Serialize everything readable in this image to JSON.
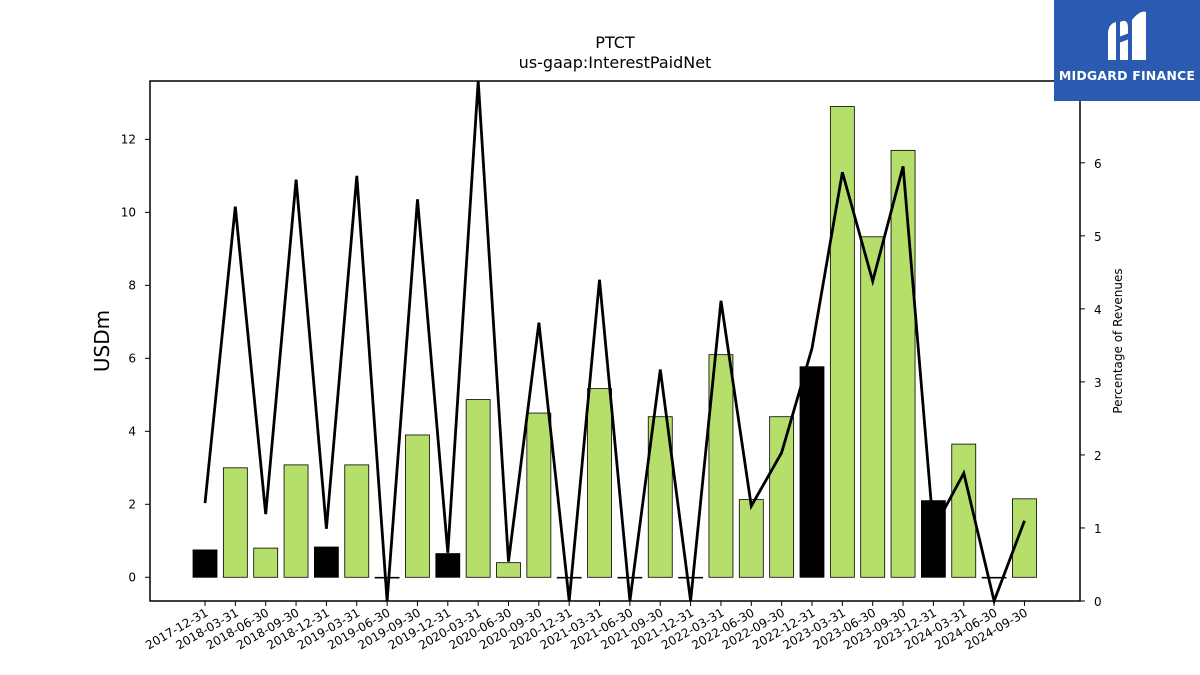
{
  "logo": {
    "text": "MIDGARD FINANCE",
    "color": "#2b5bb0"
  },
  "chart_data": {
    "type": "bar",
    "title": "PTCT",
    "subtitle": "us-gaap:InterestPaidNet",
    "ylabel": "USDm",
    "y2label": "Percentage of Revenues",
    "ylim": [
      -0.65,
      13.6
    ],
    "y2lim": [
      0,
      7.12
    ],
    "yticks": [
      0,
      2,
      4,
      6,
      8,
      10,
      12
    ],
    "y2ticks": [
      0,
      1,
      2,
      3,
      4,
      5,
      6
    ],
    "colors": {
      "annual": "#000000",
      "quarter": "#b5de6b",
      "line": "#000000"
    },
    "categories": [
      "2017-12-31",
      "2018-03-31",
      "2018-06-30",
      "2018-09-30",
      "2018-12-31",
      "2019-03-31",
      "2019-06-30",
      "2019-09-30",
      "2019-12-31",
      "2020-03-31",
      "2020-06-30",
      "2020-09-30",
      "2020-12-31",
      "2021-03-31",
      "2021-06-30",
      "2021-09-30",
      "2021-12-31",
      "2022-03-31",
      "2022-06-30",
      "2022-09-30",
      "2022-12-31",
      "2023-03-31",
      "2023-06-30",
      "2023-09-30",
      "2023-12-31",
      "2024-03-31",
      "2024-06-30",
      "2024-09-30"
    ],
    "series": [
      {
        "type": "bar",
        "values": [
          0.75,
          3.0,
          0.8,
          3.08,
          0.83,
          3.08,
          0.0,
          3.9,
          0.65,
          4.87,
          0.4,
          4.5,
          0.0,
          5.17,
          0.0,
          4.4,
          0.0,
          6.1,
          2.13,
          4.4,
          5.77,
          12.9,
          9.33,
          11.7,
          2.1,
          3.65,
          0.0,
          2.15
        ],
        "kind": [
          "annual",
          "quarter",
          "quarter",
          "quarter",
          "annual",
          "quarter",
          "quarter",
          "quarter",
          "annual",
          "quarter",
          "quarter",
          "quarter",
          "annual",
          "quarter",
          "quarter",
          "quarter",
          "annual",
          "quarter",
          "quarter",
          "quarter",
          "annual",
          "quarter",
          "quarter",
          "quarter",
          "annual",
          "quarter",
          "quarter",
          "quarter"
        ]
      },
      {
        "type": "line",
        "axis": "right",
        "values": [
          1.34,
          5.4,
          1.19,
          5.77,
          0.99,
          5.82,
          0.0,
          5.5,
          0.66,
          7.12,
          0.54,
          3.81,
          0.0,
          4.4,
          0.0,
          3.17,
          0.0,
          4.11,
          1.3,
          2.03,
          3.46,
          5.87,
          4.38,
          5.95,
          0.98,
          1.75,
          0.0,
          1.1
        ]
      }
    ]
  }
}
